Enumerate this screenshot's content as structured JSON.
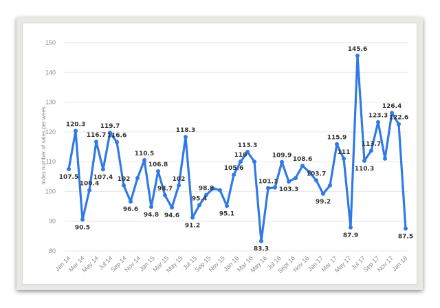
{
  "chart_data": {
    "type": "line",
    "ylabel": "Index number of sales per week",
    "ylim": [
      80,
      150
    ],
    "yticks": [
      80,
      90,
      100,
      110,
      120,
      130,
      140,
      150
    ],
    "grid": true,
    "x_tick_labels": [
      "Jan 14",
      "Mar 14",
      "May 14",
      "Jul 14",
      "Sep 14",
      "Nov 14",
      "Jan 15",
      "Mar 15",
      "May 15",
      "Jul 15",
      "Sep 15",
      "Nov 15",
      "Jan 16",
      "Mar 16",
      "May 16",
      "Jul 16",
      "Sept 16",
      "Nov 16",
      "Jan 17",
      "Mar 17",
      "May 17",
      "Jul 17",
      "Sep 17",
      "Nov 17",
      "Jan 18"
    ],
    "series": [
      {
        "color": "#2f7ae5",
        "values": [
          107.5,
          120.3,
          90.5,
          100.4,
          116.7,
          107.4,
          119.7,
          116.6,
          102,
          96.6,
          104.5,
          110.5,
          94.8,
          106.8,
          98.7,
          94.6,
          102,
          118.3,
          91.2,
          95.4,
          98.8,
          101,
          100.4,
          95.1,
          105.6,
          110,
          113.3,
          110,
          83.3,
          101.1,
          101.3,
          109.9,
          103.3,
          104.5,
          108.6,
          106.5,
          103.7,
          99.2,
          102,
          115.9,
          111,
          87.9,
          145.6,
          110.3,
          113.7,
          123.3,
          111,
          126.4,
          122.6,
          87.5
        ],
        "labels": [
          "107.5",
          "120.3",
          "90.5",
          "100.4",
          "116.7",
          "107.4",
          "119.7",
          "116.6",
          "102",
          "96.6",
          "",
          "110.5",
          "94.8",
          "106.8",
          "98.7",
          "94.6",
          "102",
          "118.3",
          "91.2",
          "95.4",
          "98.8",
          "",
          "",
          "95.1",
          "105.6",
          "110",
          "113.3",
          "",
          "83.3",
          "101.1",
          "",
          "109.9",
          "103.3",
          "",
          "108.6",
          "",
          "103.7",
          "99.2",
          "",
          "115.9",
          "111",
          "87.9",
          "145.6",
          "110.3",
          "113.7",
          "123.3",
          "",
          "126.4",
          "122.6",
          "87.5"
        ]
      }
    ]
  }
}
